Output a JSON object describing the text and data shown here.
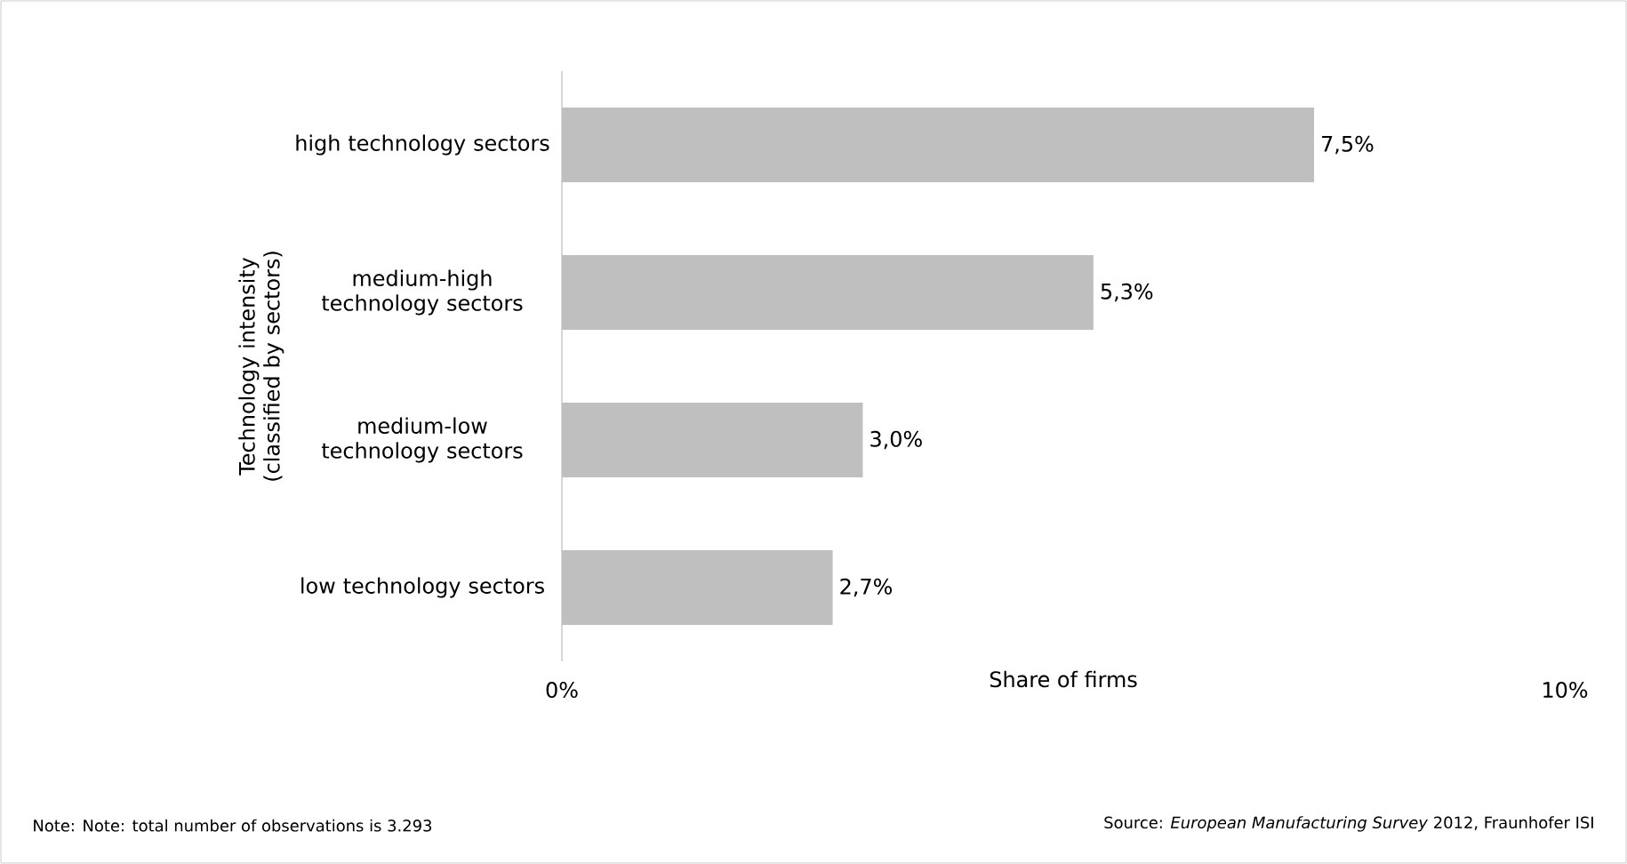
{
  "chart_data": {
    "type": "bar",
    "orientation": "horizontal",
    "categories": [
      "high technology sectors",
      "medium-high technology sectors",
      "medium-low technology sectors",
      "low technology sectors"
    ],
    "values": [
      7.5,
      5.3,
      3.0,
      2.7
    ],
    "value_labels": [
      "7,5%",
      "5,3%",
      "3,0%",
      "2,7%"
    ],
    "color": "#bfbfbf",
    "xlim": [
      0,
      10
    ],
    "xticks": [
      {
        "value": 0,
        "label": "0%"
      },
      {
        "value": 10,
        "label": "10%"
      }
    ],
    "xlabel": "Share of firms",
    "ylabel": "Technology intensity (classified by sectors)",
    "annotations": [
      "Note: Note: total number of observations is 3.293",
      "Source: *European Manufacturing Survey* 2012, Fraunhofer ISI"
    ]
  }
}
